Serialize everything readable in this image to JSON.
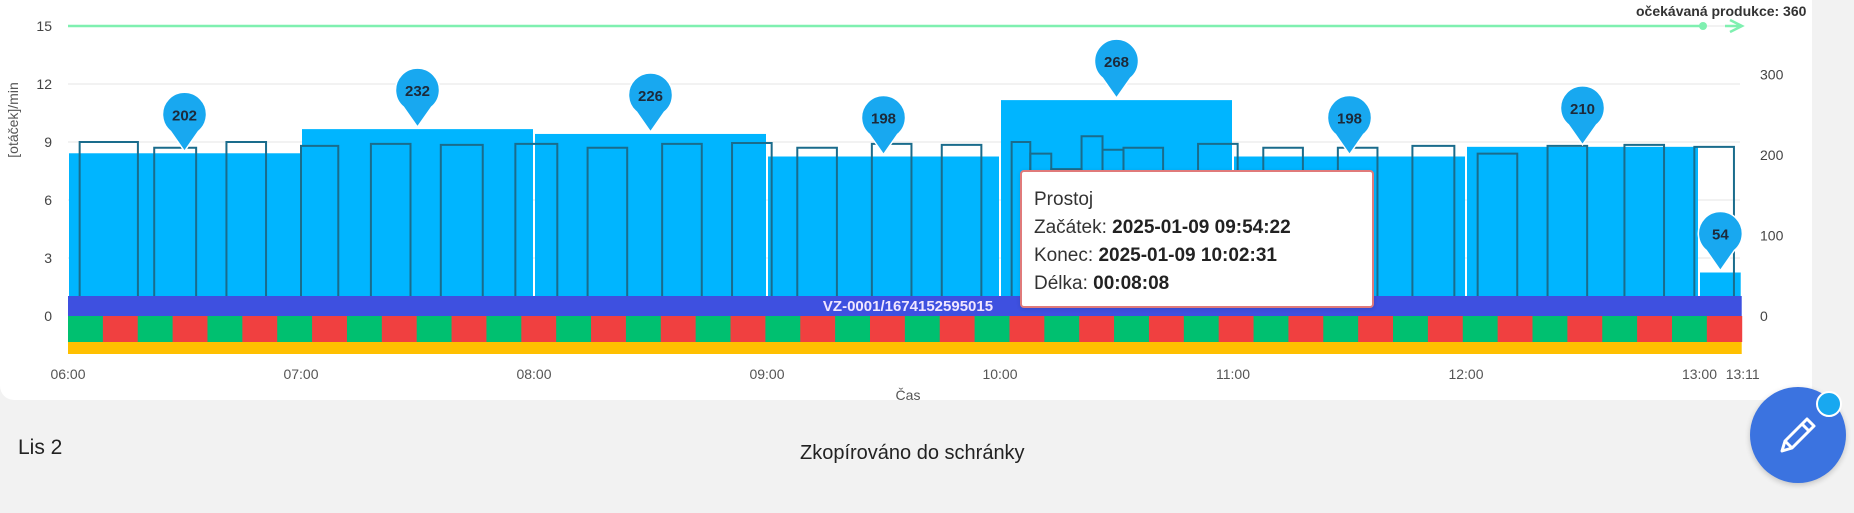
{
  "chart_data": {
    "type": "bar",
    "y_left": {
      "label": "[otáček]/min",
      "ticks": [
        "0",
        "3",
        "6",
        "9",
        "12",
        "15"
      ],
      "ylim": [
        0,
        15
      ]
    },
    "y_right": {
      "ticks": [
        "0",
        "100",
        "200",
        "300"
      ],
      "ylim": [
        0,
        360
      ]
    },
    "x": {
      "label": "Čas",
      "ticks": [
        "06:00",
        "07:00",
        "08:00",
        "09:00",
        "10:00",
        "11:00",
        "12:00",
        "13:00",
        "13:11"
      ],
      "range": [
        "06:00",
        "13:11"
      ]
    },
    "expected_line": {
      "name": "očekávaná produkce: 360",
      "value": 360
    },
    "hourly_production": [
      {
        "start": "06:00",
        "end": "07:00",
        "value": 202
      },
      {
        "start": "07:00",
        "end": "08:00",
        "value": 232
      },
      {
        "start": "08:00",
        "end": "09:00",
        "value": 226
      },
      {
        "start": "09:00",
        "end": "10:00",
        "value": 198
      },
      {
        "start": "10:00",
        "end": "11:00",
        "value": 268
      },
      {
        "start": "11:00",
        "end": "12:00",
        "value": 198
      },
      {
        "start": "12:00",
        "end": "13:00",
        "value": 210
      },
      {
        "start": "13:00",
        "end": "13:11",
        "value": 54
      }
    ],
    "speed_steps": [
      [
        0.05,
        0.3,
        9.0
      ],
      [
        0.37,
        0.55,
        8.7
      ],
      [
        0.68,
        0.85,
        9.0
      ],
      [
        1.0,
        1.16,
        8.8
      ],
      [
        1.3,
        1.47,
        8.9
      ],
      [
        1.6,
        1.78,
        8.85
      ],
      [
        1.92,
        2.1,
        8.9
      ],
      [
        2.23,
        2.4,
        8.7
      ],
      [
        2.55,
        2.72,
        8.9
      ],
      [
        2.85,
        3.02,
        8.95
      ],
      [
        3.13,
        3.3,
        8.7
      ],
      [
        3.45,
        3.62,
        8.9
      ],
      [
        3.75,
        3.92,
        8.85
      ],
      [
        4.05,
        4.13,
        9.0
      ],
      [
        4.13,
        4.22,
        8.4
      ],
      [
        4.22,
        4.35,
        7.6
      ],
      [
        4.35,
        4.44,
        9.3
      ],
      [
        4.44,
        4.53,
        8.6
      ],
      [
        4.53,
        4.7,
        8.7
      ],
      [
        4.85,
        5.02,
        8.9
      ],
      [
        5.13,
        5.3,
        8.7
      ],
      [
        5.45,
        5.62,
        8.7
      ],
      [
        5.77,
        5.95,
        8.8
      ],
      [
        6.05,
        6.22,
        8.4
      ],
      [
        6.35,
        6.52,
        8.8
      ],
      [
        6.68,
        6.85,
        8.85
      ],
      [
        6.98,
        7.15,
        8.75
      ]
    ],
    "order_label": "VZ-0001/1674152595015",
    "status_pattern": [
      "green",
      "red",
      "green",
      "red",
      "green",
      "red",
      "green",
      "red",
      "green",
      "red",
      "green",
      "red",
      "green",
      "red",
      "green",
      "red",
      "green",
      "red",
      "green",
      "red",
      "green",
      "red",
      "green",
      "red",
      "green",
      "red",
      "green",
      "red",
      "green",
      "red",
      "green",
      "red",
      "green",
      "red",
      "green",
      "red",
      "green",
      "red",
      "green",
      "red",
      "green",
      "red",
      "green",
      "red",
      "green",
      "red",
      "green",
      "red"
    ]
  },
  "tooltip": {
    "title": "Prostoj",
    "start_label": "Začátek:",
    "start_value": "2025-01-09 09:54:22",
    "end_label": "Konec:",
    "end_value": "2025-01-09 10:02:31",
    "duration_label": "Délka:",
    "duration_value": "00:08:08"
  },
  "footer": {
    "sheet_label": "Lis 2",
    "toast": "Zkopírováno do schránky"
  },
  "fab": {
    "icon": "pencil-icon"
  },
  "colors": {
    "bar": "#00b5ff",
    "step_line": "#1a6c8c",
    "expected_line": "#7ff0b0",
    "order_band": "#3e50e0",
    "status_green": "#00c070",
    "status_red": "#f04040",
    "bottom_band": "#ffc000",
    "pin": "#18a8f0"
  }
}
